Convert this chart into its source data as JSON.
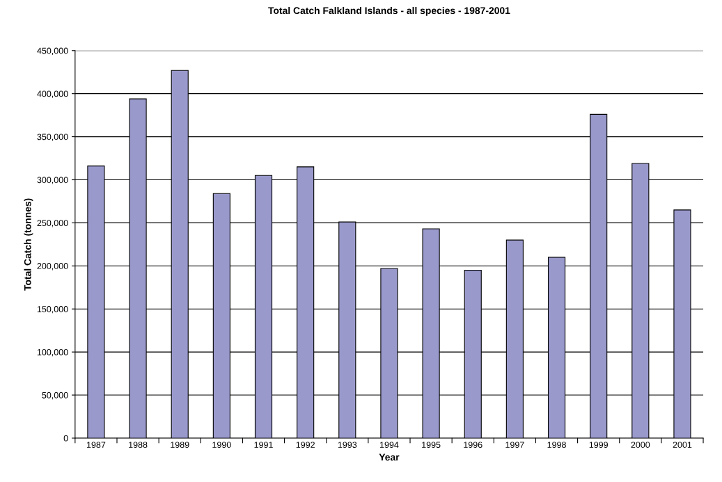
{
  "chart_data": {
    "type": "bar",
    "title": "Total Catch Falkland Islands - all species - 1987-2001",
    "xlabel": "Year",
    "ylabel": "Total Catch (tonnes)",
    "categories": [
      "1987",
      "1988",
      "1989",
      "1990",
      "1991",
      "1992",
      "1993",
      "1994",
      "1995",
      "1996",
      "1997",
      "1998",
      "1999",
      "2000",
      "2001"
    ],
    "values": [
      316000,
      394000,
      427000,
      284000,
      305000,
      315000,
      251000,
      197000,
      243000,
      195000,
      230000,
      210000,
      376000,
      319000,
      265000
    ],
    "color": "#9999cc",
    "ylim": [
      0,
      450000
    ],
    "yticks": [
      {
        "value": 0,
        "label": "0"
      },
      {
        "value": 50000,
        "label": "50,000"
      },
      {
        "value": 100000,
        "label": "100,000"
      },
      {
        "value": 150000,
        "label": "150,000"
      },
      {
        "value": 200000,
        "label": "200,000"
      },
      {
        "value": 250000,
        "label": "250,000"
      },
      {
        "value": 300000,
        "label": "300,000"
      },
      {
        "value": 350000,
        "label": "350,000"
      },
      {
        "value": 400000,
        "label": "400,000"
      },
      {
        "value": 450000,
        "label": "450,000"
      }
    ],
    "grid": "y"
  }
}
